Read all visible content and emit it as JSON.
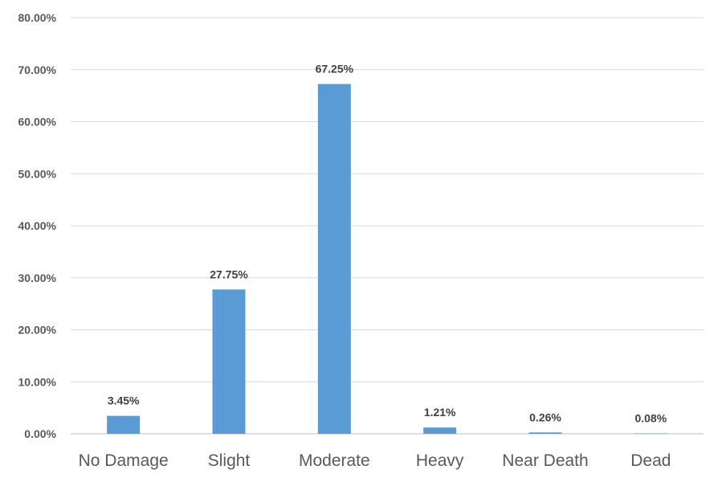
{
  "chart_data": {
    "type": "bar",
    "categories": [
      "No Damage",
      "Slight",
      "Moderate",
      "Heavy",
      "Near Death",
      "Dead"
    ],
    "values": [
      3.45,
      27.75,
      67.25,
      1.21,
      0.26,
      0.08
    ],
    "data_labels": [
      "3.45%",
      "27.75%",
      "67.25%",
      "1.21%",
      "0.26%",
      "0.08%"
    ],
    "y_ticks": [
      "0.00%",
      "10.00%",
      "20.00%",
      "30.00%",
      "40.00%",
      "50.00%",
      "60.00%",
      "70.00%",
      "80.00%"
    ],
    "ylim": [
      0,
      80
    ],
    "y_unit": "%",
    "grid": true,
    "legend": "none",
    "bar_color": "#5b9bd5"
  }
}
